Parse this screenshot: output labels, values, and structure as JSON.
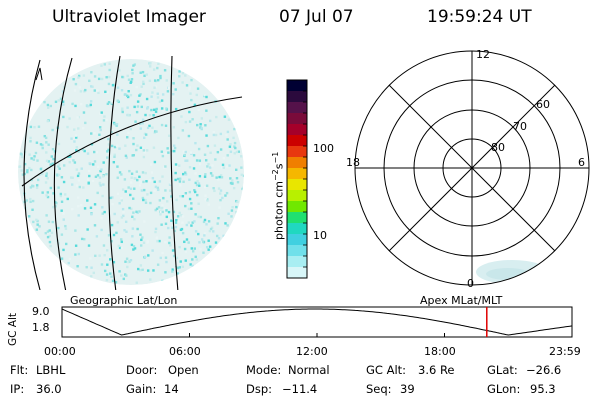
{
  "header": {
    "instrument": "Ultraviolet Imager",
    "date": "07 Jul 07",
    "time": "19:59:24 UT"
  },
  "colorbar": {
    "unit_main": "photon cm",
    "unit_sup1": "−2",
    "unit_mid": "s",
    "unit_sup2": "−1",
    "tick_high": "100",
    "tick_low": "10",
    "colors": [
      "#000033",
      "#2b0a3d",
      "#55124a",
      "#7a0b3a",
      "#a5002a",
      "#cc0000",
      "#e8380f",
      "#f07f00",
      "#f5b700",
      "#e9e600",
      "#b8f000",
      "#70e800",
      "#20e070",
      "#20d8c0",
      "#40d0e0",
      "#70e0ea",
      "#a8eef2",
      "#d8f6f8"
    ]
  },
  "polar": {
    "clock_labels": {
      "top": "12",
      "left": "18",
      "right": "6",
      "bottom": "0"
    },
    "lat_labels": [
      "60",
      "70",
      "80"
    ]
  },
  "labels": {
    "geo": "Geographic Lat/Lon",
    "apex": "Apex MLat/MLT"
  },
  "timeline": {
    "ylabel": "GC Alt",
    "y_top": "9.0",
    "y_bottom": "1.8",
    "ticks": [
      "00:00",
      "06:00",
      "12:00",
      "18:00",
      "23:59"
    ],
    "current_marker_hour": 19.99
  },
  "info": {
    "flt_label": "Flt:",
    "flt_value": "LBHL",
    "ip_label": "IP:",
    "ip_value": "36.0",
    "door_label": "Door:",
    "door_value": "Open",
    "gain_label": "Gain:",
    "gain_value": "14",
    "mode_label": "Mode:",
    "mode_value": "Normal",
    "dsp_label": "Dsp:",
    "dsp_value": "−11.4",
    "gcalt_label": "GC Alt:",
    "gcalt_value": "3.6 Re",
    "seq_label": "Seq:",
    "seq_value": "39",
    "glat_label": "GLat:",
    "glat_value": "−26.6",
    "glon_label": "GLon:",
    "glon_value": "95.3"
  }
}
